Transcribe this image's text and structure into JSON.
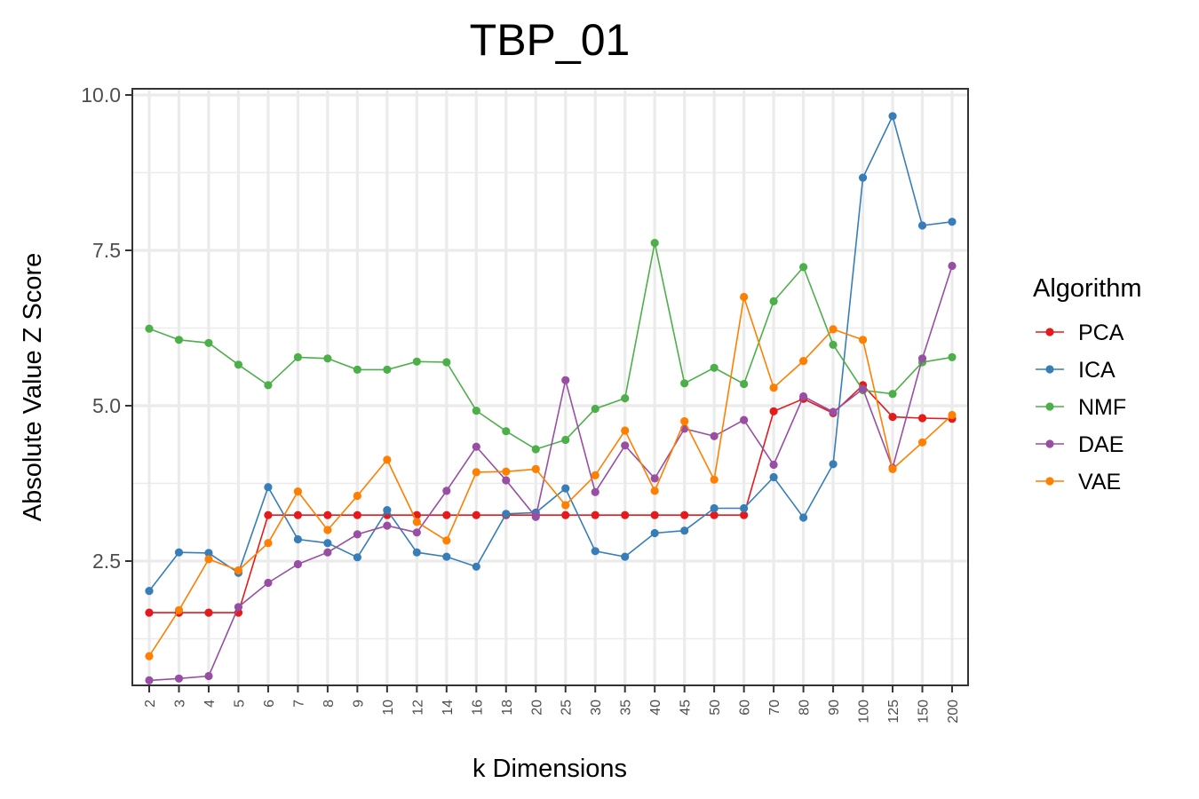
{
  "chart_data": {
    "type": "line",
    "title": "TBP_01",
    "xlabel": "k Dimensions",
    "ylabel": "Absolute Value Z Score",
    "categories": [
      "2",
      "3",
      "4",
      "5",
      "6",
      "7",
      "8",
      "9",
      "10",
      "12",
      "14",
      "16",
      "18",
      "20",
      "25",
      "30",
      "35",
      "40",
      "45",
      "50",
      "60",
      "70",
      "80",
      "90",
      "100",
      "125",
      "150",
      "200"
    ],
    "ylim": [
      0.5,
      10.1
    ],
    "yticks": [
      2.5,
      5.0,
      7.5,
      10.0
    ],
    "ytick_labels": [
      "2.5",
      "5.0",
      "7.5",
      "10.0"
    ],
    "grid": true,
    "legend": {
      "title": "Algorithm",
      "position": "right"
    },
    "series": [
      {
        "name": "PCA",
        "color": "#e41a1c",
        "values": [
          1.67,
          1.67,
          1.67,
          1.67,
          3.24,
          3.24,
          3.24,
          3.24,
          3.24,
          3.24,
          3.24,
          3.24,
          3.24,
          3.24,
          3.24,
          3.24,
          3.24,
          3.24,
          3.24,
          3.24,
          3.24,
          4.91,
          5.11,
          4.88,
          5.33,
          4.82,
          4.8,
          4.79
        ]
      },
      {
        "name": "ICA",
        "color": "#377eb8",
        "values": [
          2.02,
          2.64,
          2.63,
          2.31,
          3.69,
          2.85,
          2.79,
          2.56,
          3.32,
          2.64,
          2.57,
          2.41,
          3.26,
          3.28,
          3.67,
          2.66,
          2.57,
          2.95,
          2.99,
          3.35,
          3.35,
          3.85,
          3.2,
          4.06,
          8.67,
          9.66,
          7.9,
          7.96
        ]
      },
      {
        "name": "NMF",
        "color": "#4daf4a",
        "values": [
          6.24,
          6.06,
          6.01,
          5.66,
          5.33,
          5.78,
          5.76,
          5.58,
          5.58,
          5.71,
          5.7,
          4.92,
          4.59,
          4.3,
          4.45,
          4.95,
          5.12,
          7.62,
          5.36,
          5.61,
          5.35,
          6.68,
          7.23,
          5.98,
          5.25,
          5.19,
          5.7,
          5.78
        ]
      },
      {
        "name": "DAE",
        "color": "#984ea3",
        "values": [
          0.58,
          0.61,
          0.65,
          1.76,
          2.15,
          2.45,
          2.64,
          2.93,
          3.07,
          2.96,
          3.63,
          4.34,
          3.8,
          3.21,
          5.41,
          3.61,
          4.36,
          3.83,
          4.63,
          4.51,
          4.77,
          4.05,
          5.15,
          4.9,
          5.27,
          4.0,
          5.76,
          7.25
        ]
      },
      {
        "name": "VAE",
        "color": "#ff7f00",
        "values": [
          0.97,
          1.71,
          2.53,
          2.35,
          2.79,
          3.62,
          3.0,
          3.55,
          4.13,
          3.13,
          2.83,
          3.93,
          3.94,
          3.98,
          3.4,
          3.88,
          4.6,
          3.63,
          4.75,
          3.81,
          6.75,
          5.29,
          5.72,
          6.23,
          6.06,
          3.98,
          4.41,
          4.85
        ]
      }
    ]
  }
}
